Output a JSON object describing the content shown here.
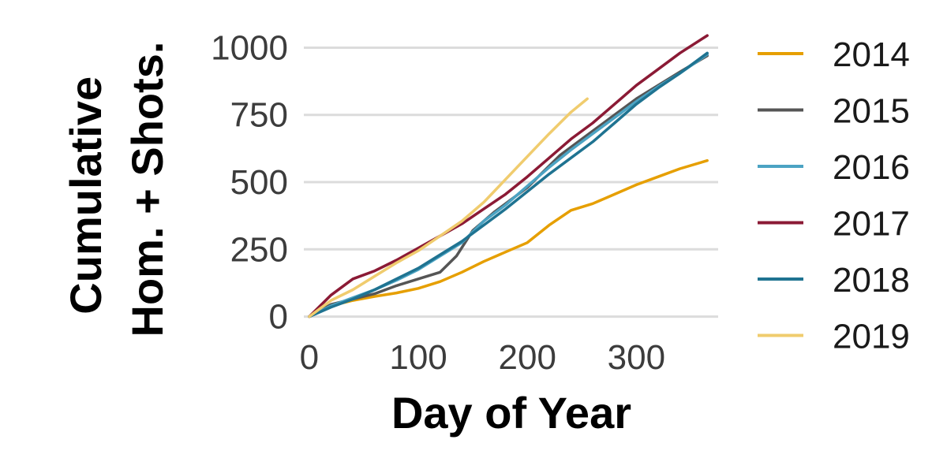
{
  "chart_data": {
    "type": "line",
    "xlabel": "Day of Year",
    "ylabel_lines": [
      "Cumulative",
      "Hom. + Shots."
    ],
    "xlim": [
      -5,
      375
    ],
    "ylim": [
      -10,
      1060
    ],
    "x_ticks": [
      0,
      100,
      200,
      300
    ],
    "x_tick_labels": [
      "0",
      "100",
      "200",
      "300"
    ],
    "y_ticks": [
      0,
      250,
      500,
      750,
      1000
    ],
    "y_tick_labels": [
      "0",
      "250",
      "500",
      "750",
      "1000"
    ],
    "grid": "horizontal",
    "legend_position": "right",
    "series": [
      {
        "name": "2014",
        "color": "#E69F00",
        "x": [
          0,
          20,
          40,
          60,
          80,
          100,
          120,
          140,
          160,
          180,
          200,
          220,
          240,
          260,
          280,
          300,
          320,
          340,
          365
        ],
        "y": [
          0,
          40,
          60,
          75,
          88,
          105,
          130,
          165,
          205,
          240,
          275,
          340,
          395,
          420,
          455,
          490,
          520,
          550,
          580
        ]
      },
      {
        "name": "2015",
        "color": "#555555",
        "x": [
          0,
          20,
          40,
          60,
          80,
          100,
          120,
          135,
          150,
          170,
          200,
          230,
          260,
          280,
          300,
          320,
          340,
          365
        ],
        "y": [
          0,
          45,
          65,
          85,
          115,
          140,
          165,
          225,
          320,
          390,
          480,
          600,
          690,
          750,
          810,
          860,
          910,
          970
        ]
      },
      {
        "name": "2016",
        "color": "#4BA3C3",
        "x": [
          0,
          20,
          40,
          60,
          80,
          100,
          120,
          140,
          160,
          180,
          200,
          220,
          240,
          260,
          280,
          300,
          320,
          340,
          365
        ],
        "y": [
          0,
          40,
          70,
          100,
          135,
          175,
          225,
          275,
          355,
          415,
          485,
          555,
          620,
          680,
          740,
          800,
          855,
          905,
          975
        ]
      },
      {
        "name": "2017",
        "color": "#8B1A35",
        "x": [
          0,
          20,
          40,
          60,
          80,
          100,
          120,
          140,
          160,
          180,
          200,
          220,
          240,
          260,
          280,
          300,
          320,
          340,
          365
        ],
        "y": [
          0,
          80,
          140,
          170,
          210,
          255,
          300,
          345,
          400,
          455,
          520,
          590,
          660,
          720,
          790,
          860,
          920,
          980,
          1045
        ]
      },
      {
        "name": "2018",
        "color": "#1F7391",
        "x": [
          0,
          20,
          40,
          60,
          80,
          100,
          120,
          140,
          160,
          180,
          200,
          220,
          240,
          260,
          280,
          300,
          320,
          340,
          365
        ],
        "y": [
          0,
          35,
          65,
          100,
          140,
          180,
          230,
          280,
          340,
          400,
          465,
          530,
          590,
          650,
          720,
          790,
          850,
          905,
          980
        ]
      },
      {
        "name": "2019",
        "color": "#F0CC6E",
        "x": [
          0,
          20,
          40,
          60,
          80,
          100,
          120,
          140,
          160,
          180,
          200,
          220,
          240,
          255
        ],
        "y": [
          0,
          60,
          100,
          150,
          200,
          245,
          300,
          355,
          425,
          510,
          595,
          680,
          760,
          810
        ]
      }
    ]
  }
}
